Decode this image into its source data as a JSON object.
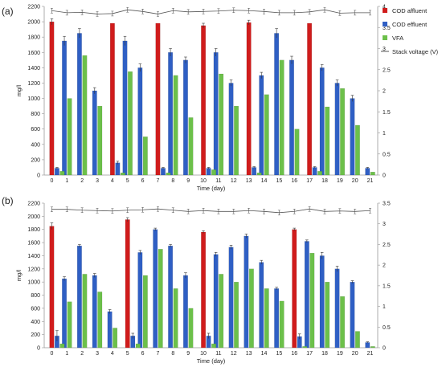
{
  "legend": {
    "items": [
      {
        "name": "COD affluent",
        "color": "#d01c1c"
      },
      {
        "name": "COD effluent",
        "color": "#2f5fc4"
      },
      {
        "name": "VFA",
        "color": "#6cc04a"
      },
      {
        "name": "Stack voltage (V)",
        "color": "#555555"
      }
    ]
  },
  "chart_data": [
    {
      "type": "bar",
      "panel_label": "(a)",
      "xlabel": "Time (day)",
      "ylabel": "mg/l",
      "categories": [
        "0",
        "1",
        "2",
        "3",
        "4",
        "5",
        "6",
        "7",
        "8",
        "9",
        "10",
        "11",
        "12",
        "13",
        "14",
        "15",
        "16",
        "17",
        "18",
        "19",
        "20",
        "21"
      ],
      "ylim": [
        0,
        2200
      ],
      "yticks": [
        0,
        200,
        400,
        600,
        800,
        1000,
        1200,
        1400,
        1600,
        1800,
        2000,
        2200
      ],
      "y2lim": [
        0,
        4
      ],
      "y2ticks": [
        "0",
        "0.5",
        "1",
        "1.5",
        "2",
        "2.5",
        "3",
        "3.5",
        "4"
      ],
      "series": [
        {
          "name": "COD affluent",
          "color": "#d01c1c",
          "values": [
            2000,
            null,
            null,
            null,
            1980,
            null,
            null,
            1980,
            null,
            null,
            1950,
            null,
            null,
            1990,
            null,
            null,
            null,
            1980,
            null,
            null,
            null,
            null
          ],
          "err": [
            40,
            0,
            0,
            0,
            0,
            0,
            0,
            0,
            0,
            0,
            30,
            0,
            0,
            30,
            0,
            0,
            0,
            0,
            0,
            0,
            0,
            0
          ]
        },
        {
          "name": "COD effluent",
          "color": "#2f5fc4",
          "values": [
            90,
            1750,
            1850,
            1100,
            160,
            1750,
            1400,
            90,
            1600,
            1500,
            90,
            1600,
            1200,
            100,
            1300,
            1850,
            1500,
            100,
            1400,
            1200,
            1000,
            90
          ],
          "err": [
            10,
            60,
            60,
            40,
            20,
            60,
            50,
            10,
            50,
            40,
            10,
            50,
            40,
            10,
            40,
            60,
            50,
            10,
            40,
            40,
            40,
            10
          ]
        },
        {
          "name": "VFA",
          "color": "#6cc04a",
          "values": [
            50,
            1000,
            1560,
            900,
            30,
            1350,
            500,
            30,
            1300,
            750,
            70,
            1320,
            900,
            30,
            1050,
            1500,
            600,
            50,
            890,
            1130,
            650,
            40
          ],
          "err": [
            0,
            0,
            0,
            0,
            0,
            0,
            0,
            0,
            0,
            0,
            0,
            0,
            0,
            0,
            0,
            0,
            0,
            0,
            0,
            0,
            0,
            0
          ]
        }
      ],
      "line": {
        "name": "Stack voltage (V)",
        "color": "#555555",
        "values": [
          3.9,
          3.85,
          3.86,
          3.82,
          3.83,
          3.92,
          3.88,
          3.82,
          3.9,
          3.87,
          3.88,
          3.89,
          3.91,
          3.9,
          3.88,
          3.85,
          3.85,
          3.87,
          3.92,
          3.84,
          3.85,
          3.85
        ]
      }
    },
    {
      "type": "bar",
      "panel_label": "(b)",
      "xlabel": "Time (day)",
      "ylabel": "mg/l",
      "categories": [
        "0",
        "1",
        "2",
        "3",
        "4",
        "5",
        "6",
        "7",
        "8",
        "9",
        "10",
        "11",
        "12",
        "13",
        "14",
        "15",
        "16",
        "17",
        "18",
        "19",
        "20",
        "21"
      ],
      "ylim": [
        0,
        2200
      ],
      "yticks": [
        0,
        200,
        400,
        600,
        800,
        1000,
        1200,
        1400,
        1600,
        1800,
        2000,
        2200
      ],
      "y2lim": [
        0,
        3.5
      ],
      "y2ticks": [
        "0",
        "0.5",
        "1",
        "1.5",
        "2",
        "2.5",
        "3",
        "3.5"
      ],
      "series": [
        {
          "name": "COD affluent",
          "color": "#d01c1c",
          "values": [
            1850,
            null,
            null,
            null,
            null,
            1950,
            null,
            null,
            null,
            null,
            1760,
            null,
            null,
            null,
            null,
            null,
            1800,
            null,
            null,
            null,
            null,
            null
          ],
          "err": [
            50,
            0,
            0,
            0,
            0,
            30,
            0,
            0,
            0,
            0,
            20,
            0,
            0,
            0,
            0,
            0,
            20,
            0,
            0,
            0,
            0,
            0
          ]
        },
        {
          "name": "COD effluent",
          "color": "#2f5fc4",
          "values": [
            180,
            1050,
            1550,
            1100,
            550,
            180,
            1450,
            1800,
            1550,
            1100,
            180,
            1420,
            1530,
            1700,
            1300,
            900,
            170,
            1620,
            1400,
            1200,
            1000,
            80
          ],
          "err": [
            80,
            30,
            20,
            30,
            30,
            40,
            30,
            20,
            20,
            40,
            40,
            30,
            30,
            30,
            30,
            20,
            40,
            20,
            50,
            40,
            20,
            10
          ]
        },
        {
          "name": "VFA",
          "color": "#6cc04a",
          "values": [
            60,
            700,
            1120,
            850,
            300,
            60,
            1100,
            1500,
            900,
            600,
            60,
            1120,
            1000,
            1200,
            900,
            710,
            20,
            1440,
            1000,
            780,
            250,
            20
          ],
          "err": [
            0,
            0,
            0,
            0,
            0,
            0,
            0,
            0,
            0,
            0,
            0,
            0,
            0,
            0,
            0,
            0,
            0,
            0,
            0,
            0,
            0,
            0
          ]
        }
      ],
      "line": {
        "name": "Stack voltage (V)",
        "color": "#555555",
        "values": [
          3.35,
          3.35,
          3.33,
          3.32,
          3.31,
          3.33,
          3.34,
          3.36,
          3.33,
          3.3,
          3.32,
          3.3,
          3.3,
          3.32,
          3.3,
          3.27,
          3.3,
          3.36,
          3.3,
          3.31,
          3.3,
          3.32
        ]
      }
    }
  ]
}
